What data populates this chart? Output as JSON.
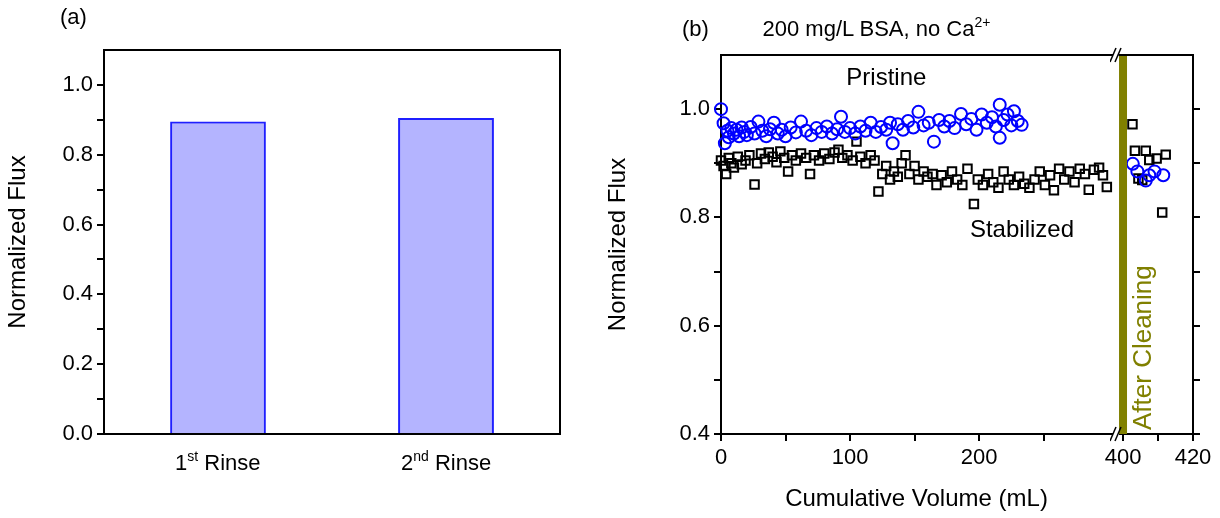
{
  "chart_data": [
    {
      "type": "bar",
      "annotations": [
        "(a)"
      ],
      "categories": [
        "1$^{st}$ Rinse",
        "2$^{nd}$ Rinse"
      ],
      "values": [
        0.895,
        0.905
      ],
      "color": "#1f1fff",
      "ylabel": "Normalized Flux",
      "ylim": [
        0,
        1.1
      ],
      "yticks": [
        {
          "value": 0,
          "label": "0.0"
        },
        {
          "value": 0.1,
          "label": null
        },
        0.2,
        {
          "value": 0.3,
          "label": null
        },
        0.4,
        {
          "value": 0.5,
          "label": null
        },
        0.6,
        {
          "value": 0.7,
          "label": null
        },
        0.8,
        {
          "value": 0.9,
          "label": null
        },
        {
          "value": 1,
          "label": "1.0"
        }
      ]
    },
    {
      "type": "scatter",
      "title": "200 mg/L BSA, no Ca$^{2+}$",
      "annotations": [
        "(b)"
      ],
      "xlabel": "Cumulative Volume (mL)",
      "ylabel": "Normalized Flux",
      "xlim": [
        0,
        303
      ],
      "xticks": [
        0,
        {
          "value": 50,
          "label": null
        },
        100,
        {
          "value": 150,
          "label": null
        },
        200,
        {
          "value": 250,
          "label": null
        }
      ],
      "ylim": [
        0.4,
        1.1
      ],
      "yticks": [
        0.4,
        {
          "value": 0.5,
          "label": null
        },
        0.6,
        {
          "value": 0.7,
          "label": null
        },
        0.8,
        {
          "value": 0.9,
          "label": null
        },
        {
          "value": 1,
          "label": "1.0"
        }
      ],
      "series": [
        {
          "name": "Pristine",
          "color": "#0000ff",
          "marker": "circle",
          "x": [
            0,
            2,
            3,
            5,
            6,
            8,
            10,
            12,
            14,
            16,
            18,
            20,
            23,
            26,
            29,
            32,
            35,
            38,
            41,
            44,
            47,
            50,
            54,
            58,
            62,
            66,
            70,
            74,
            78,
            82,
            86,
            90,
            93,
            96,
            100,
            104,
            108,
            112,
            116,
            120,
            124,
            128,
            131,
            133,
            137,
            141,
            145,
            149,
            153,
            157,
            161,
            165,
            169,
            173,
            177,
            181,
            186,
            190,
            194,
            198,
            202,
            206,
            210,
            213,
            216,
            216,
            219,
            222,
            225,
            227,
            230,
            233
          ],
          "values": [
            1.0,
            0.974,
            0.937,
            0.96,
            0.948,
            0.965,
            0.955,
            0.962,
            0.95,
            0.966,
            0.958,
            0.952,
            0.967,
            0.955,
            0.977,
            0.96,
            0.95,
            0.963,
            0.975,
            0.955,
            0.962,
            0.95,
            0.966,
            0.957,
            0.977,
            0.96,
            0.952,
            0.965,
            0.958,
            0.968,
            0.955,
            0.963,
            0.986,
            0.958,
            0.965,
            0.955,
            0.968,
            0.96,
            0.975,
            0.958,
            0.967,
            0.962,
            0.975,
            0.937,
            0.972,
            0.962,
            0.978,
            0.966,
            0.995,
            0.97,
            0.975,
            0.94,
            0.98,
            0.968,
            0.978,
            0.965,
            0.991,
            0.972,
            0.982,
            0.962,
            0.99,
            0.975,
            0.985,
            0.968,
            1.008,
            0.947,
            0.98,
            0.99,
            0.97,
            0.996,
            0.978,
            0.971
          ]
        },
        {
          "name": "Stabilized",
          "color": "#000000",
          "marker": "square",
          "x": [
            0,
            2,
            4,
            6,
            8,
            10,
            13,
            16,
            19,
            22,
            26,
            28,
            31,
            34,
            37,
            40,
            43,
            46,
            49,
            52,
            55,
            58,
            62,
            66,
            69,
            72,
            76,
            80,
            84,
            88,
            91,
            94,
            98,
            102,
            105,
            108,
            112,
            116,
            119,
            122,
            125,
            128,
            131,
            134,
            137,
            140,
            143,
            146,
            150,
            153,
            157,
            160,
            164,
            167,
            171,
            175,
            179,
            183,
            187,
            191,
            196,
            199,
            203,
            207,
            211,
            215,
            219,
            223,
            227,
            231,
            235,
            239,
            243,
            247,
            251,
            255,
            258,
            262,
            266,
            270,
            274,
            278,
            282,
            285,
            289,
            293,
            296,
            299
          ],
          "values": [
            0.905,
            0.895,
            0.88,
            0.91,
            0.9,
            0.892,
            0.912,
            0.898,
            0.905,
            0.915,
            0.861,
            0.9,
            0.918,
            0.908,
            0.92,
            0.912,
            0.902,
            0.922,
            0.91,
            0.885,
            0.915,
            0.905,
            0.918,
            0.91,
            0.88,
            0.915,
            0.905,
            0.918,
            0.908,
            0.92,
            0.925,
            0.91,
            0.915,
            0.905,
            0.94,
            0.912,
            0.9,
            0.915,
            0.905,
            0.848,
            0.88,
            0.895,
            0.87,
            0.885,
            0.875,
            0.9,
            0.915,
            0.88,
            0.895,
            0.87,
            0.885,
            0.875,
            0.88,
            0.86,
            0.878,
            0.865,
            0.885,
            0.87,
            0.86,
            0.89,
            0.825,
            0.87,
            0.86,
            0.88,
            0.865,
            0.855,
            0.885,
            0.87,
            0.86,
            0.875,
            0.862,
            0.855,
            0.87,
            0.885,
            0.86,
            0.878,
            0.85,
            0.89,
            0.87,
            0.885,
            0.865,
            0.89,
            0.88,
            0.851,
            0.888,
            0.892,
            0.878,
            0.856
          ]
        }
      ]
    },
    {
      "type": "scatter",
      "xlim": [
        399,
        420
      ],
      "xticks": [
        400,
        {
          "value": 410,
          "label": null
        },
        420
      ],
      "ylim": [
        0.4,
        1.1
      ],
      "yticks": [
        {
          "value": 0.4,
          "label": null
        },
        {
          "value": 0.5,
          "label": null
        },
        {
          "value": 0.6,
          "label": null
        },
        {
          "value": 0.7,
          "label": null
        },
        {
          "value": 0.8,
          "label": null
        },
        {
          "value": 0.9,
          "label": null
        },
        {
          "value": 1,
          "label": null
        }
      ],
      "tick_labels": "x",
      "ref_lines": [
        {
          "axis": "x",
          "value": 400,
          "label": "After Cleaning",
          "color": "#808000"
        }
      ],
      "series": [
        {
          "color": "#0000ff",
          "marker": "circle",
          "x": [
            402.8,
            404.1,
            406.5,
            407.5,
            409,
            411.5
          ],
          "values": [
            0.899,
            0.885,
            0.868,
            0.878,
            0.885,
            0.878
          ]
        },
        {
          "color": "#000000",
          "marker": "square",
          "x": [
            402.7,
            403.4,
            404.4,
            405.5,
            406.5,
            407.5,
            409.6,
            411.2,
            412.2
          ],
          "values": [
            0.972,
            0.923,
            0.872,
            0.869,
            0.923,
            0.906,
            0.909,
            0.809,
            0.916
          ]
        }
      ]
    }
  ]
}
